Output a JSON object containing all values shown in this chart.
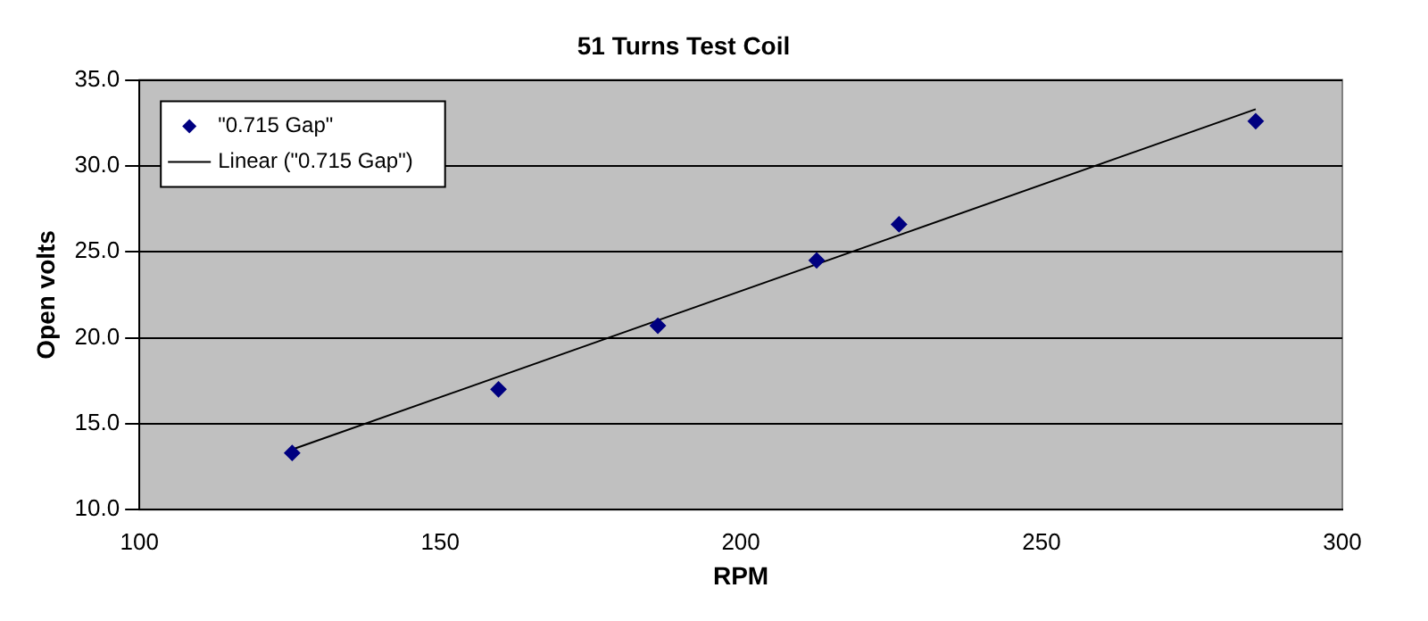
{
  "chart_data": {
    "type": "scatter",
    "title": "51 Turns Test Coil",
    "xlabel": "RPM",
    "ylabel": "Open volts",
    "xlim": [
      100,
      300
    ],
    "xticks": [
      100,
      150,
      200,
      250,
      300
    ],
    "ylim": [
      10,
      35
    ],
    "yticks": [
      {
        "value": 10,
        "label": "10.0"
      },
      {
        "value": 15,
        "label": "15.0"
      },
      {
        "value": 20,
        "label": "20.0"
      },
      {
        "value": 25,
        "label": "25.0"
      },
      {
        "value": 30,
        "label": "30.0"
      },
      {
        "value": 35,
        "label": "35.0"
      }
    ],
    "grid": "y",
    "legend": "top left",
    "series": [
      {
        "name": "\"0.715 Gap\"",
        "color": "#000080",
        "marker": "diamond",
        "x": [
          125.4,
          159.7,
          186.2,
          212.6,
          226.3,
          285.6
        ],
        "values": [
          13.3,
          17.0,
          20.7,
          24.5,
          26.6,
          32.6
        ]
      },
      {
        "name": "Linear (\"0.715 Gap\")",
        "type": "line",
        "marker": "none",
        "color": "#000000",
        "x": [
          125.4,
          285.6
        ],
        "values": [
          13.5,
          33.3
        ]
      }
    ]
  }
}
